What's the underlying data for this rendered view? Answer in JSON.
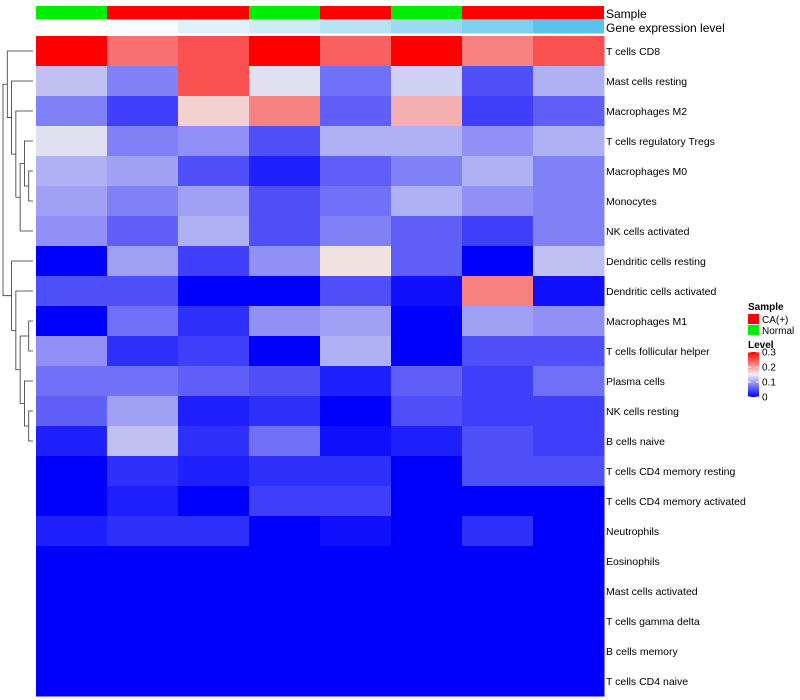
{
  "chart_data": {
    "type": "heatmap",
    "annotation_tracks": [
      {
        "name": "Sample",
        "values": [
          "Normal",
          "CA(+)",
          "CA(+)",
          "Normal",
          "CA(+)",
          "Normal",
          "CA(+)",
          "CA(+)"
        ]
      },
      {
        "name": "Gene expression level",
        "values": [
          "#ffffff",
          "#f5fbff",
          "#dff2fb",
          "#ccecf8",
          "#b5e3f5",
          "#9cdaf3",
          "#7fcff0",
          "#5bc2ec"
        ]
      }
    ],
    "rows": [
      "T cells CD8",
      "Mast cells resting",
      "Macrophages M2",
      "T cells regulatory  Tregs",
      "Macrophages M0",
      "Monocytes",
      "NK cells activated",
      "Dendritic cells resting",
      "Dendritic cells activated",
      "Macrophages M1",
      "T cells follicular helper",
      "Plasma cells",
      "NK cells resting",
      "B cells naive",
      "T cells CD4 memory resting",
      "T cells CD4 memory activated",
      "Neutrophils",
      "Eosinophils",
      "Mast cells activated",
      "T cells gamma delta",
      "B cells memory",
      "T cells CD4 naive"
    ],
    "values": [
      [
        0.3,
        0.23,
        0.25,
        0.3,
        0.24,
        0.3,
        0.22,
        0.25
      ],
      [
        0.12,
        0.08,
        0.25,
        0.14,
        0.07,
        0.13,
        0.05,
        0.11
      ],
      [
        0.08,
        0.04,
        0.17,
        0.22,
        0.06,
        0.19,
        0.04,
        0.06
      ],
      [
        0.14,
        0.08,
        0.09,
        0.05,
        0.11,
        0.11,
        0.09,
        0.11
      ],
      [
        0.11,
        0.1,
        0.05,
        0.02,
        0.06,
        0.08,
        0.11,
        0.08
      ],
      [
        0.1,
        0.08,
        0.1,
        0.05,
        0.07,
        0.11,
        0.09,
        0.08
      ],
      [
        0.09,
        0.06,
        0.11,
        0.05,
        0.08,
        0.06,
        0.04,
        0.08
      ],
      [
        0.0,
        0.1,
        0.04,
        0.09,
        0.16,
        0.06,
        0.0,
        0.12
      ],
      [
        0.05,
        0.05,
        0.0,
        0.0,
        0.05,
        0.01,
        0.22,
        0.01
      ],
      [
        0.0,
        0.07,
        0.03,
        0.09,
        0.1,
        0.0,
        0.1,
        0.09
      ],
      [
        0.09,
        0.03,
        0.04,
        0.0,
        0.11,
        0.0,
        0.05,
        0.05
      ],
      [
        0.07,
        0.07,
        0.06,
        0.05,
        0.02,
        0.06,
        0.04,
        0.07
      ],
      [
        0.06,
        0.1,
        0.02,
        0.03,
        0.0,
        0.05,
        0.04,
        0.04
      ],
      [
        0.02,
        0.12,
        0.03,
        0.07,
        0.01,
        0.02,
        0.05,
        0.04
      ],
      [
        0.0,
        0.03,
        0.02,
        0.03,
        0.03,
        0.0,
        0.05,
        0.05
      ],
      [
        0.0,
        0.02,
        0.0,
        0.04,
        0.04,
        0.0,
        0.0,
        0.0
      ],
      [
        0.02,
        0.03,
        0.03,
        0.0,
        0.01,
        0.0,
        0.03,
        0.0
      ],
      [
        0.0,
        0.0,
        0.0,
        0.0,
        0.0,
        0.0,
        0.0,
        0.0
      ],
      [
        0.0,
        0.0,
        0.0,
        0.0,
        0.0,
        0.0,
        0.0,
        0.0
      ],
      [
        0.0,
        0.0,
        0.0,
        0.0,
        0.0,
        0.0,
        0.0,
        0.0
      ],
      [
        0.0,
        0.0,
        0.0,
        0.0,
        0.0,
        0.0,
        0.0,
        0.0
      ],
      [
        0.0,
        0.0,
        0.0,
        0.0,
        0.0,
        0.0,
        0.0,
        0.0
      ]
    ],
    "color_scale": {
      "low": "#0000ff",
      "mid": "#f0f0f0",
      "high": "#ff0000",
      "min": 0,
      "mid_value": 0.15,
      "max": 0.3
    },
    "legend": {
      "sample_title": "Sample",
      "sample_items": [
        {
          "label": "CA(+)",
          "color": "#ff0000"
        },
        {
          "label": "Normal",
          "color": "#00ee00"
        }
      ],
      "level_title": "Level",
      "level_ticks": [
        "0.3",
        "0.2",
        "0.1",
        "0"
      ],
      "level_tick_values": [
        0.3,
        0.2,
        0.1,
        0
      ]
    },
    "row_dendrogram": "[[0,[1,[2,[[3,[4,5]],6]]]],[7,[8,[[9,10],[11,[12,13]]]]],[[14,15],[16,[17,[18,[19,[20,21]]]]]]]"
  }
}
